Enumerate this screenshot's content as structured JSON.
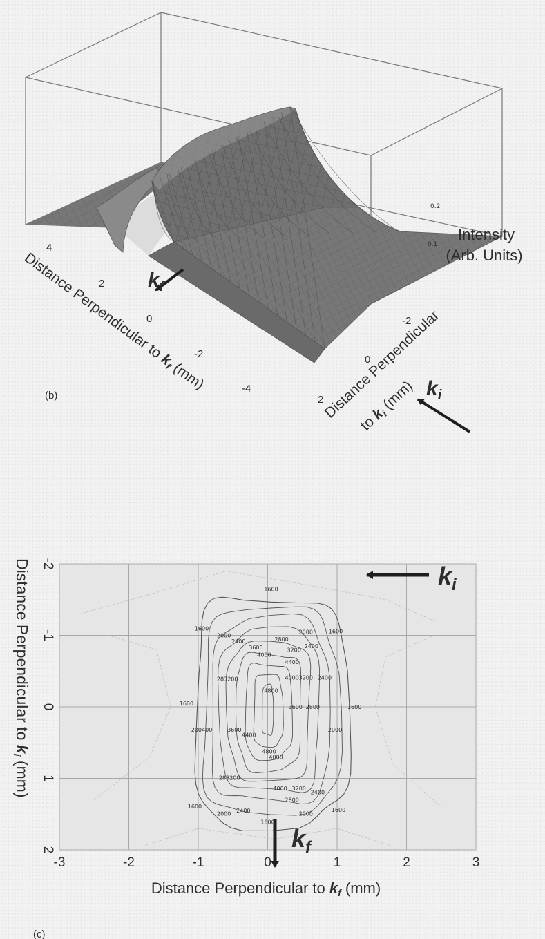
{
  "chart_data": [
    {
      "type": "surface",
      "panel_label": "(b)",
      "zlabel_line1": "Intensity",
      "zlabel_line2": "(Arb. Units)",
      "z_ticks": [
        "0.2",
        "0.1"
      ],
      "xlabel": "Distance Perpendicular to kf (mm)",
      "xlabel_parts": {
        "pre": "Distance Perpendicular to ",
        "k": "k",
        "sub": "f",
        "post": " (mm)"
      },
      "x_ticks": [
        "4",
        "2",
        "0",
        "-2",
        "-4"
      ],
      "ylabel_line1": "Distance Perpendicular",
      "ylabel_line2": {
        "pre": "to ",
        "k": "k",
        "sub": "i",
        "post": " (mm)"
      },
      "y_ticks": [
        "-2",
        "0",
        "2"
      ],
      "arrow_kf": {
        "k": "k",
        "sub": "f"
      },
      "arrow_ki": {
        "k": "k",
        "sub": "i"
      },
      "grid": true
    },
    {
      "type": "contour",
      "panel_label": "(c)",
      "xlabel": {
        "pre": "Distance Perpendicular to ",
        "k": "k",
        "sub": "f",
        "post": " (mm)"
      },
      "ylabel": {
        "pre": "Distance Perpendicular to ",
        "k": "k",
        "sub": "i",
        "post": " (mm)"
      },
      "xlim": [
        -3,
        3
      ],
      "ylim": [
        -2,
        2
      ],
      "y_inverted": true,
      "x_ticks": [
        -3,
        -2,
        -1,
        0,
        1,
        2,
        3
      ],
      "x_tick_labels": [
        "-3",
        "-2",
        "-1",
        "0",
        "1",
        "2",
        "3"
      ],
      "y_ticks": [
        -2,
        -1,
        0,
        1,
        2
      ],
      "y_tick_labels": [
        "-2",
        "-1",
        "0",
        "1",
        "2"
      ],
      "grid": true,
      "levels": [
        1600,
        2000,
        2400,
        2800,
        3200,
        3600,
        4000,
        4400,
        4800
      ],
      "level_labels": [
        {
          "text": "1600",
          "x": 0.05,
          "y": -1.62
        },
        {
          "text": "1600",
          "x": -0.95,
          "y": -1.07
        },
        {
          "text": "1600",
          "x": 0.98,
          "y": -1.03
        },
        {
          "text": "2000",
          "x": -0.63,
          "y": -0.97
        },
        {
          "text": "2000",
          "x": 0.55,
          "y": -1.02
        },
        {
          "text": "2400",
          "x": -0.42,
          "y": -0.89
        },
        {
          "text": "2800",
          "x": 0.2,
          "y": -0.92
        },
        {
          "text": "2400",
          "x": 0.63,
          "y": -0.82
        },
        {
          "text": "3600",
          "x": -0.17,
          "y": -0.8
        },
        {
          "text": "3200",
          "x": 0.38,
          "y": -0.77
        },
        {
          "text": "4000",
          "x": -0.05,
          "y": -0.7
        },
        {
          "text": "4400",
          "x": 0.35,
          "y": -0.6
        },
        {
          "text": "283200",
          "x": -0.58,
          "y": -0.36
        },
        {
          "text": "4800",
          "x": 0.05,
          "y": -0.2
        },
        {
          "text": "4000",
          "x": 0.35,
          "y": -0.38
        },
        {
          "text": "3200",
          "x": 0.55,
          "y": -0.38
        },
        {
          "text": "2400",
          "x": 0.82,
          "y": -0.38
        },
        {
          "text": "1600",
          "x": -1.17,
          "y": -0.02
        },
        {
          "text": "3600",
          "x": 0.4,
          "y": 0.03
        },
        {
          "text": "2800",
          "x": 0.65,
          "y": 0.03
        },
        {
          "text": "1600",
          "x": 1.25,
          "y": 0.03
        },
        {
          "text": "200400",
          "x": -0.95,
          "y": 0.35
        },
        {
          "text": "3600",
          "x": -0.48,
          "y": 0.35
        },
        {
          "text": "4400",
          "x": -0.27,
          "y": 0.42
        },
        {
          "text": "2000",
          "x": 0.97,
          "y": 0.35
        },
        {
          "text": "4800",
          "x": 0.02,
          "y": 0.65
        },
        {
          "text": "4000",
          "x": 0.12,
          "y": 0.73
        },
        {
          "text": "283200",
          "x": -0.55,
          "y": 1.02
        },
        {
          "text": "4000",
          "x": 0.18,
          "y": 1.17
        },
        {
          "text": "3200",
          "x": 0.45,
          "y": 1.17
        },
        {
          "text": "2400",
          "x": 0.72,
          "y": 1.22
        },
        {
          "text": "2800",
          "x": 0.35,
          "y": 1.33
        },
        {
          "text": "1600",
          "x": -1.05,
          "y": 1.42
        },
        {
          "text": "2000",
          "x": -0.63,
          "y": 1.52
        },
        {
          "text": "2400",
          "x": -0.35,
          "y": 1.48
        },
        {
          "text": "2000",
          "x": 0.55,
          "y": 1.52
        },
        {
          "text": "1600",
          "x": 1.02,
          "y": 1.47
        },
        {
          "text": "1600",
          "x": 0.0,
          "y": 1.64
        }
      ],
      "arrow_kf": {
        "k": "k",
        "sub": "f"
      },
      "arrow_ki": {
        "k": "k",
        "sub": "i"
      }
    }
  ],
  "colors": {
    "background": "#f2f2f2",
    "surface": "#6d6d6d",
    "contour": "#5a5a5a",
    "grid": "#9a9a9a",
    "arrow": "#1e1e1e"
  }
}
